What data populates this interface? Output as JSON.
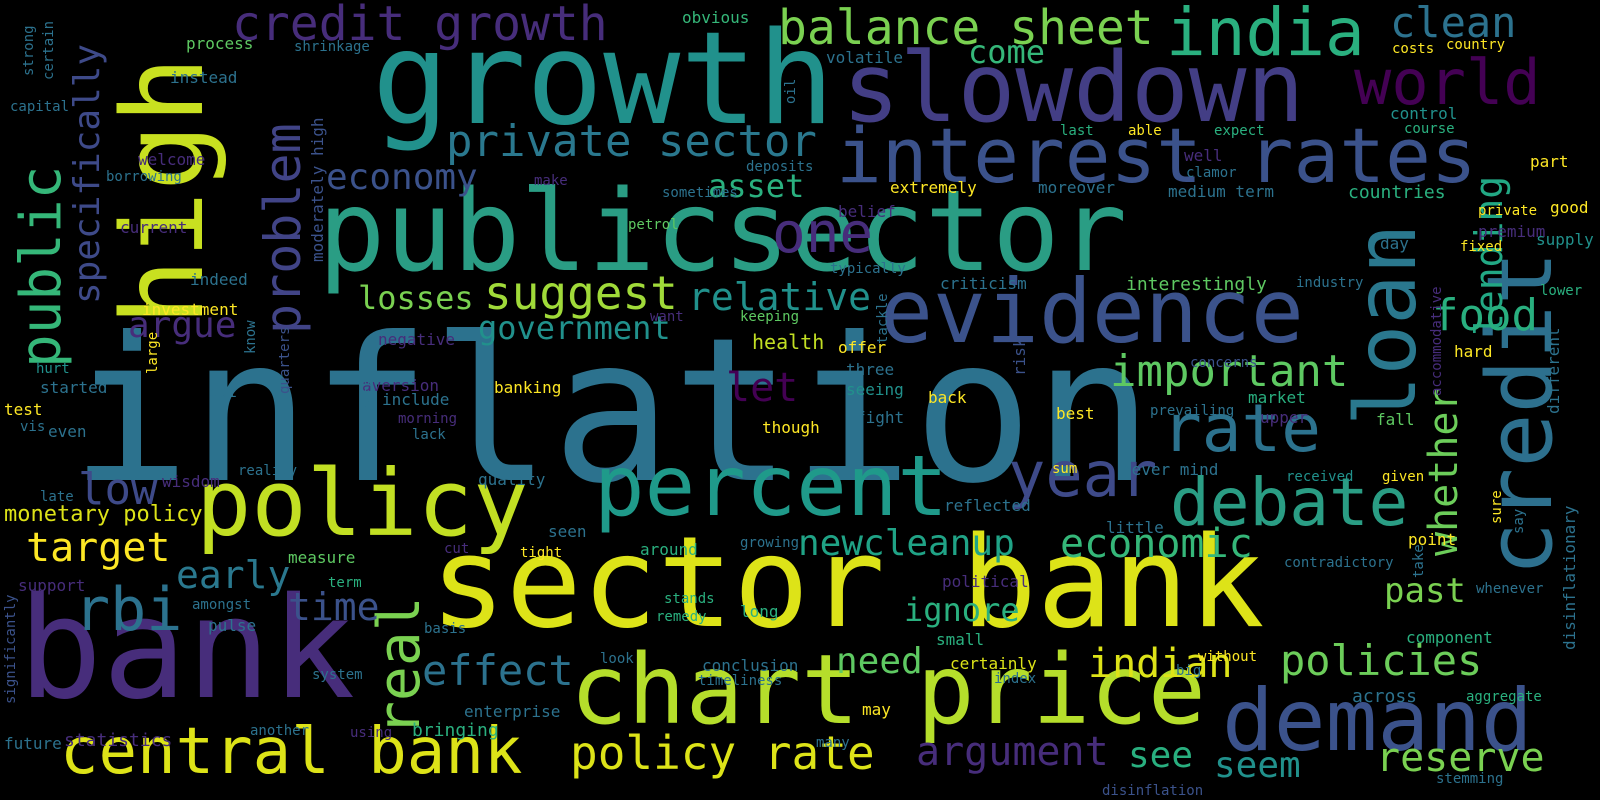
{
  "palette": {
    "purple": "#440154",
    "indigo": "#472d7b",
    "blue": "#3b528b",
    "teal": "#2c728e",
    "cyan": "#21918c",
    "green": "#28ae80",
    "lime": "#5ec962",
    "yellowgreen": "#addc30",
    "yellow": "#fde725"
  },
  "words": {
    "inflation": "inflation",
    "public_sector": "publicsector",
    "sector_bank": "sector bank",
    "bank": "bank",
    "high": "high",
    "growth": "growth",
    "slowdown": "slowdown",
    "interest_rates": "interest rates",
    "evidence": "evidence",
    "loan": "loan",
    "credit": "credit",
    "chart_price": "chart price",
    "policy": "policy",
    "percent": "percent",
    "demand": "demand",
    "world": "world",
    "india": "india",
    "balance_sheet": "balance sheet",
    "credit_growth": "credit growth",
    "clean": "clean",
    "central_bank": "central bank",
    "policy_rate": "policy rate",
    "private_sector": "private sector",
    "problem": "problem",
    "public_v": "public",
    "specifically": "specifically",
    "one": "one",
    "rate": "rate",
    "debate": "debate",
    "year": "year",
    "real": "real",
    "rbi": "rbi",
    "economy": "economy",
    "suggest": "suggest",
    "relative": "relative",
    "losses": "losses",
    "asset": "asset",
    "government": "government",
    "argue": "argue",
    "important": "important",
    "lending": "lending",
    "food": "food",
    "whether": "whether",
    "economic": "economic",
    "newcleanup": "newcleanup",
    "low": "low",
    "target": "target",
    "early": "early",
    "time": "time",
    "let": "let",
    "effect": "effect",
    "need": "need",
    "indian": "indian",
    "policies": "policies",
    "argument": "argument",
    "see": "see",
    "seem": "seem",
    "reserve": "reserve",
    "past": "past",
    "ignore": "ignore",
    "come": "come",
    "monetary_policy": "monetary policy",
    "health": "health",
    "offer": "offer",
    "three": "three",
    "seeing": "seeing",
    "back": "back",
    "fight": "fight",
    "best": "best",
    "banking": "banking",
    "though": "though",
    "criticism": "criticism",
    "interestingly": "interestingly",
    "industry": "industry",
    "typically": "typically",
    "keeping": "keeping",
    "want": "want",
    "tackle": "tackle",
    "petrol": "petrol",
    "sometimes": "sometimes",
    "deposits": "deposits",
    "make": "make",
    "belief": "belief",
    "extremely": "extremely",
    "moreover": "moreover",
    "medium_term": "medium term",
    "countries": "countries",
    "clamor": "clamor",
    "well": "well",
    "expect": "expect",
    "last": "last",
    "able": "able",
    "control": "control",
    "course": "course",
    "part": "part",
    "good": "good",
    "private": "private",
    "premium": "premium",
    "fixed": "fixed",
    "supply": "supply",
    "day": "day",
    "lower": "lower",
    "costs": "costs",
    "country": "country",
    "obvious": "obvious",
    "volatile": "volatile",
    "oil": "oil",
    "process": "process",
    "shrinkage": "shrinkage",
    "instead": "instead",
    "capital": "capital",
    "strong": "strong",
    "certain": "certain",
    "welcome": "welcome",
    "borrowing": "borrowing",
    "current": "current",
    "moderately_high": "moderately high",
    "indeed": "indeed",
    "investment": "investment",
    "know": "know",
    "negative": "negative",
    "quarters": "quarters",
    "hurt": "hurt",
    "started": "started",
    "large": "large",
    "test": "test",
    "vis": "vis",
    "even": "even",
    "cpi": "cpi",
    "aversion": "aversion",
    "include": "include",
    "data": "data",
    "morning": "morning",
    "lack": "lack",
    "reality": "reality",
    "wisdom": "wisdom",
    "quality": "quality",
    "late": "late",
    "seen": "seen",
    "cut": "cut",
    "tight": "tight",
    "around": "around",
    "growing": "growing",
    "reflected": "reflected",
    "little": "little",
    "sum": "sum",
    "never_mind": "never mind",
    "received": "received",
    "given": "given",
    "sure": "sure",
    "say": "say",
    "point": "point",
    "risk": "risk",
    "prevailing": "prevailing",
    "market": "market",
    "upper": "upper",
    "fall": "fall",
    "concerns": "concerns",
    "hard": "hard",
    "accommodative": "accommodative",
    "different": "different",
    "disinflationary": "disinflationary",
    "contradictory": "contradictory",
    "take": "take",
    "whenever": "whenever",
    "component": "component",
    "without": "without",
    "big": "big",
    "index": "index",
    "certainly": "certainly",
    "small": "small",
    "political": "political",
    "stands": "stands",
    "remedy": "remedy",
    "long": "long",
    "conclusion": "conclusion",
    "timeliness": "timeliness",
    "look": "look",
    "measure": "measure",
    "term": "term",
    "amongst": "amongst",
    "pulse": "pulse",
    "basis": "basis",
    "support": "support",
    "significantly": "significantly",
    "system": "system",
    "future": "future",
    "statistics": "statistics",
    "another": "another",
    "using": "using",
    "bringing": "bringing",
    "enterprise": "enterprise",
    "may": "may",
    "many": "many",
    "across": "across",
    "aggregate": "aggregate",
    "stemming": "stemming",
    "disinflation": "disinflation"
  }
}
